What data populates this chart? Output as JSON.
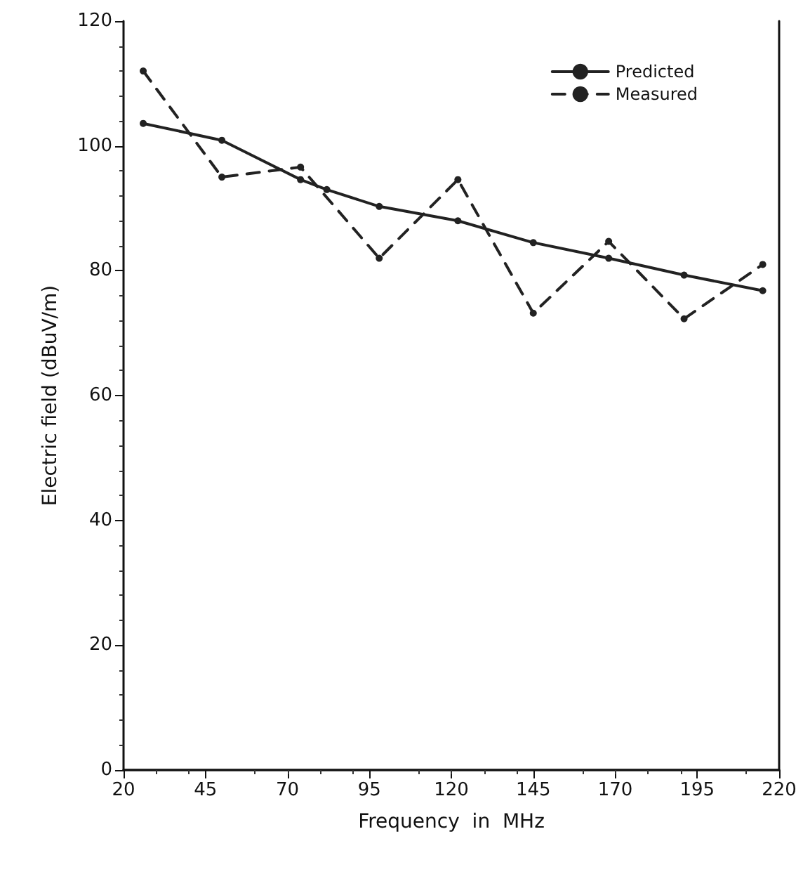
{
  "chart_data": {
    "type": "line",
    "xlabel": "Frequency  in  MHz",
    "ylabel": "Electric field (dBuV/m)",
    "xlim": [
      20,
      220
    ],
    "xticks": [
      20,
      45,
      70,
      95,
      120,
      145,
      170,
      195,
      220
    ],
    "ylim": [
      0,
      120
    ],
    "yticks": [
      0,
      20,
      40,
      60,
      80,
      100,
      120
    ],
    "grid": false,
    "legend": "top right",
    "marker": "circle",
    "series": [
      {
        "name": "Predicted",
        "color": "#222222",
        "line_style": "solid",
        "x": [
          26,
          50,
          74,
          82,
          98,
          122,
          145,
          168,
          191,
          215
        ],
        "values": [
          103.6,
          100.9,
          94.6,
          93,
          90.3,
          88,
          84.5,
          82,
          79.3,
          76.8
        ]
      },
      {
        "name": "Measured",
        "color": "#222222",
        "line_style": "dashed",
        "x": [
          26,
          50,
          74,
          98,
          122,
          145,
          168,
          191,
          215
        ],
        "values": [
          112,
          95,
          96.6,
          82,
          94.6,
          73.2,
          84.7,
          72.3,
          81
        ]
      }
    ]
  }
}
